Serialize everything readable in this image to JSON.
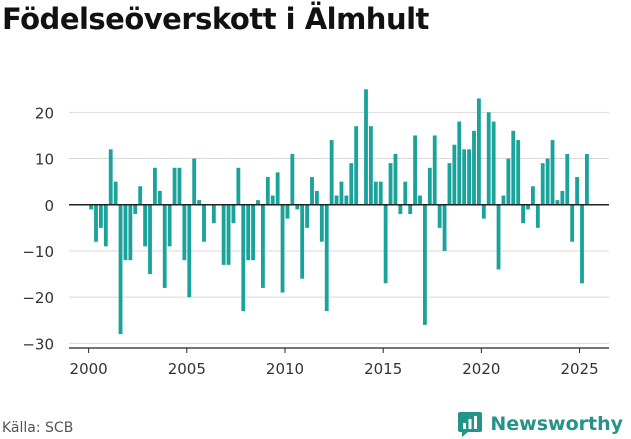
{
  "page": {
    "title": "Födelseöverskott i Älmhult",
    "source": "Källa: SCB",
    "brand": "Newsworthy"
  },
  "colors": {
    "bar": "#1aa39a",
    "grid": "#d9d9d9",
    "zero_line": "#222222",
    "brand": "#239488"
  },
  "icons": {
    "brand_logo": "chart-bubble-icon"
  },
  "chart_data": {
    "type": "bar",
    "title": "Födelseöverskott i Älmhult",
    "xlabel": "",
    "ylabel": "",
    "xlim": [
      1999,
      2026.5
    ],
    "ylim": [
      -31,
      27
    ],
    "x_ticks": [
      2000,
      2005,
      2010,
      2015,
      2020,
      2025
    ],
    "y_ticks": [
      -30,
      -20,
      -10,
      0,
      10,
      20
    ],
    "grid": true,
    "x": [
      2000.125,
      2000.375,
      2000.625,
      2000.875,
      2001.125,
      2001.375,
      2001.625,
      2001.875,
      2002.125,
      2002.375,
      2002.625,
      2002.875,
      2003.125,
      2003.375,
      2003.625,
      2003.875,
      2004.125,
      2004.375,
      2004.625,
      2004.875,
      2005.125,
      2005.375,
      2005.625,
      2005.875,
      2006.125,
      2006.375,
      2006.625,
      2006.875,
      2007.125,
      2007.375,
      2007.625,
      2007.875,
      2008.125,
      2008.375,
      2008.625,
      2008.875,
      2009.125,
      2009.375,
      2009.625,
      2009.875,
      2010.125,
      2010.375,
      2010.625,
      2010.875,
      2011.125,
      2011.375,
      2011.625,
      2011.875,
      2012.125,
      2012.375,
      2012.625,
      2012.875,
      2013.125,
      2013.375,
      2013.625,
      2013.875,
      2014.125,
      2014.375,
      2014.625,
      2014.875,
      2015.125,
      2015.375,
      2015.625,
      2015.875,
      2016.125,
      2016.375,
      2016.625,
      2016.875,
      2017.125,
      2017.375,
      2017.625,
      2017.875,
      2018.125,
      2018.375,
      2018.625,
      2018.875,
      2019.125,
      2019.375,
      2019.625,
      2019.875,
      2020.125,
      2020.375,
      2020.625,
      2020.875,
      2021.125,
      2021.375,
      2021.625,
      2021.875,
      2022.125,
      2022.375,
      2022.625,
      2022.875,
      2023.125,
      2023.375,
      2023.625,
      2023.875,
      2024.125,
      2024.375,
      2024.625,
      2024.875,
      2025.125,
      2025.375,
      2025.625
    ],
    "values": [
      -1,
      -8,
      -5,
      -9,
      12,
      5,
      -28,
      -12,
      -12,
      -2,
      4,
      -9,
      -15,
      8,
      3,
      -18,
      -9,
      8,
      8,
      -12,
      -20,
      10,
      1,
      -8,
      0,
      -4,
      0,
      -13,
      -13,
      -4,
      8,
      -23,
      -12,
      -12,
      1,
      -18,
      6,
      2,
      7,
      -19,
      -3,
      11,
      -1,
      -16,
      -5,
      6,
      3,
      -8,
      -23,
      14,
      2,
      5,
      2,
      9,
      17,
      0,
      25,
      17,
      5,
      5,
      -17,
      9,
      11,
      -2,
      5,
      -2,
      15,
      2,
      -26,
      8,
      15,
      -5,
      -10,
      9,
      13,
      18,
      12,
      12,
      16,
      23,
      -3,
      20,
      18,
      -14,
      2,
      10,
      16,
      14,
      -4,
      -1,
      4,
      -5,
      9,
      10,
      14,
      1,
      3,
      11,
      -8,
      6,
      -17,
      11,
      0
    ]
  }
}
